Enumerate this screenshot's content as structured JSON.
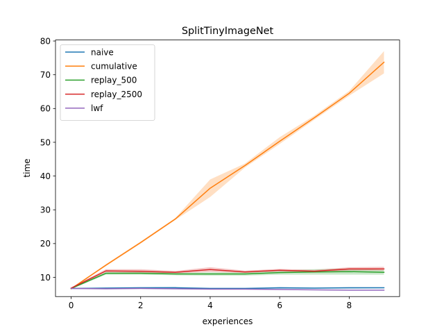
{
  "chart_data": {
    "type": "line",
    "title": "SplitTinyImageNet",
    "xlabel": "experiences",
    "ylabel": "time",
    "xlim": [
      -0.45,
      9.45
    ],
    "ylim": [
      4.3,
      80.3
    ],
    "xticks": [
      0,
      2,
      4,
      6,
      8
    ],
    "yticks": [
      10,
      20,
      30,
      40,
      50,
      60,
      70,
      80
    ],
    "grid": false,
    "legend_position": "top-left",
    "x": [
      0,
      1,
      2,
      3,
      4,
      5,
      6,
      7,
      8,
      9
    ],
    "series": [
      {
        "name": "naive",
        "color": "#1f77b4",
        "values": [
          6.7,
          6.8,
          6.9,
          6.9,
          6.7,
          6.7,
          6.9,
          6.8,
          6.9,
          6.9
        ],
        "band_lower": [
          6.6,
          6.6,
          6.7,
          6.7,
          6.5,
          6.5,
          6.6,
          6.6,
          6.6,
          6.7
        ],
        "band_upper": [
          6.8,
          7.0,
          7.1,
          7.2,
          6.9,
          6.9,
          7.1,
          7.0,
          7.1,
          7.1
        ]
      },
      {
        "name": "cumulative",
        "color": "#ff7f0e",
        "values": [
          6.6,
          13.6,
          20.3,
          27.3,
          36.4,
          43.1,
          50.3,
          57.3,
          64.5,
          73.7
        ],
        "band_lower": [
          6.4,
          13.3,
          20.0,
          27.0,
          33.8,
          42.5,
          49.5,
          56.7,
          63.8,
          70.4
        ],
        "band_upper": [
          6.8,
          13.9,
          20.6,
          27.6,
          39.0,
          43.7,
          51.5,
          57.9,
          65.2,
          77.0
        ]
      },
      {
        "name": "replay_500",
        "color": "#2ca02c",
        "values": [
          6.7,
          11.2,
          11.2,
          11.0,
          11.0,
          11.0,
          11.4,
          11.6,
          11.7,
          11.5
        ],
        "band_lower": [
          6.5,
          10.8,
          10.8,
          10.6,
          10.5,
          10.5,
          10.8,
          10.8,
          10.8,
          10.8
        ],
        "band_upper": [
          6.9,
          11.6,
          11.6,
          11.4,
          11.5,
          11.5,
          12.0,
          12.4,
          12.6,
          12.2
        ]
      },
      {
        "name": "replay_2500",
        "color": "#d62728",
        "values": [
          6.8,
          11.9,
          11.8,
          11.5,
          12.3,
          11.6,
          12.1,
          11.8,
          12.5,
          12.5
        ],
        "band_lower": [
          6.6,
          11.5,
          11.3,
          11.2,
          11.6,
          11.3,
          11.7,
          11.4,
          12.0,
          12.0
        ],
        "band_upper": [
          7.0,
          12.4,
          12.4,
          11.9,
          13.0,
          12.0,
          12.5,
          12.2,
          13.0,
          13.1
        ]
      },
      {
        "name": "lwf",
        "color": "#9467bd",
        "values": [
          6.7,
          6.6,
          6.7,
          6.6,
          6.5,
          6.5,
          6.4,
          6.3,
          6.2,
          6.2
        ],
        "band_lower": [
          6.6,
          6.5,
          6.6,
          6.5,
          6.4,
          6.4,
          6.3,
          6.2,
          6.1,
          6.1
        ],
        "band_upper": [
          6.8,
          6.7,
          6.8,
          6.7,
          6.6,
          6.6,
          6.5,
          6.4,
          6.3,
          6.3
        ]
      }
    ]
  }
}
